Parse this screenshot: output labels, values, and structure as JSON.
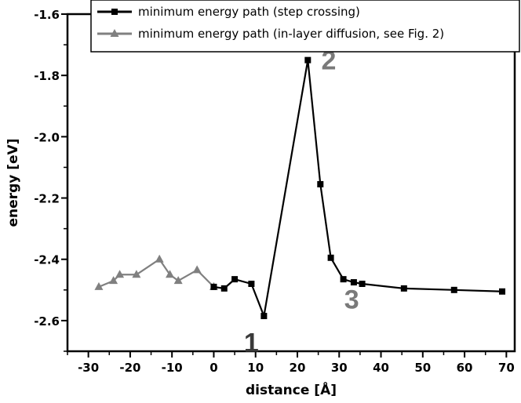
{
  "chart_data": {
    "type": "line",
    "xlabel": "distance [Å]",
    "ylabel": "energy [eV]",
    "xlim": [
      -35,
      72
    ],
    "ylim": [
      -2.7,
      -1.6
    ],
    "x_ticks": [
      -30,
      -20,
      -10,
      0,
      10,
      20,
      30,
      40,
      50,
      60,
      70
    ],
    "x_tick_labels": [
      "-30",
      "-20",
      "-10",
      "0",
      "10",
      "20",
      "30",
      "40",
      "50",
      "60",
      "70"
    ],
    "y_ticks": [
      -2.6,
      -2.4,
      -2.2,
      -2.0,
      -1.8,
      -1.6
    ],
    "y_tick_labels": [
      "-2.6",
      "-2.4",
      "-2.2",
      "-2.0",
      "-1.8",
      "-1.6"
    ],
    "legend_position": "top-right",
    "series": [
      {
        "name": "minimum energy path (step crossing)",
        "color": "#000000",
        "marker": "square",
        "x": [
          0,
          2.5,
          5,
          9,
          12,
          22.5,
          25.5,
          28,
          31,
          33.5,
          35.5,
          45.5,
          57.5,
          69
        ],
        "y": [
          -2.49,
          -2.495,
          -2.465,
          -2.48,
          -2.585,
          -1.75,
          -2.155,
          -2.395,
          -2.465,
          -2.475,
          -2.48,
          -2.495,
          -2.5,
          -2.505
        ]
      },
      {
        "name": "minimum energy path (in-layer diffusion, see Fig. 2)",
        "color": "#808080",
        "marker": "triangle",
        "x": [
          -27.5,
          -24,
          -22.5,
          -18.5,
          -13,
          -10.5,
          -8.5,
          -4,
          0
        ],
        "y": [
          -2.49,
          -2.47,
          -2.45,
          -2.45,
          -2.4,
          -2.45,
          -2.47,
          -2.435,
          -2.49
        ]
      }
    ],
    "annotations": [
      {
        "text": "1",
        "x": 9,
        "y": -2.67,
        "color": "#3a3a3a"
      },
      {
        "text": "2",
        "x": 27.5,
        "y": -1.75,
        "color": "#7a7a7a"
      },
      {
        "text": "3",
        "x": 33,
        "y": -2.53,
        "color": "#7a7a7a"
      }
    ]
  }
}
